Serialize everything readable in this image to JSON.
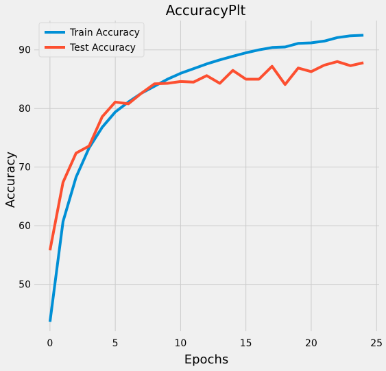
{
  "chart_data": {
    "type": "line",
    "title": "AccuracyPlt",
    "xlabel": "Epochs",
    "ylabel": "Accuracy",
    "x": [
      0,
      1,
      2,
      3,
      4,
      5,
      6,
      7,
      8,
      9,
      10,
      11,
      12,
      13,
      14,
      15,
      16,
      17,
      18,
      19,
      20,
      21,
      22,
      23,
      24
    ],
    "xlim": [
      -1.2,
      25.2
    ],
    "ylim": [
      42,
      95
    ],
    "xticks": [
      0,
      5,
      10,
      15,
      20,
      25
    ],
    "yticks": [
      50,
      60,
      70,
      80,
      90
    ],
    "grid": true,
    "legend_position": "top-left",
    "series": [
      {
        "name": "Train Accuracy",
        "color": "#008fd5",
        "values": [
          43.6,
          60.7,
          68.3,
          73.3,
          76.8,
          79.4,
          81.1,
          82.6,
          83.8,
          85.0,
          86.0,
          86.8,
          87.6,
          88.3,
          88.9,
          89.5,
          90.0,
          90.4,
          90.5,
          91.1,
          91.2,
          91.5,
          92.1,
          92.4,
          92.5
        ]
      },
      {
        "name": "Test Accuracy",
        "color": "#fc4f30",
        "values": [
          55.8,
          67.4,
          72.4,
          73.6,
          78.6,
          81.1,
          80.8,
          82.6,
          84.2,
          84.3,
          84.6,
          84.5,
          85.6,
          84.3,
          86.5,
          85.0,
          85.0,
          87.2,
          84.1,
          86.9,
          86.3,
          87.4,
          88.0,
          87.3,
          87.8
        ]
      }
    ]
  }
}
